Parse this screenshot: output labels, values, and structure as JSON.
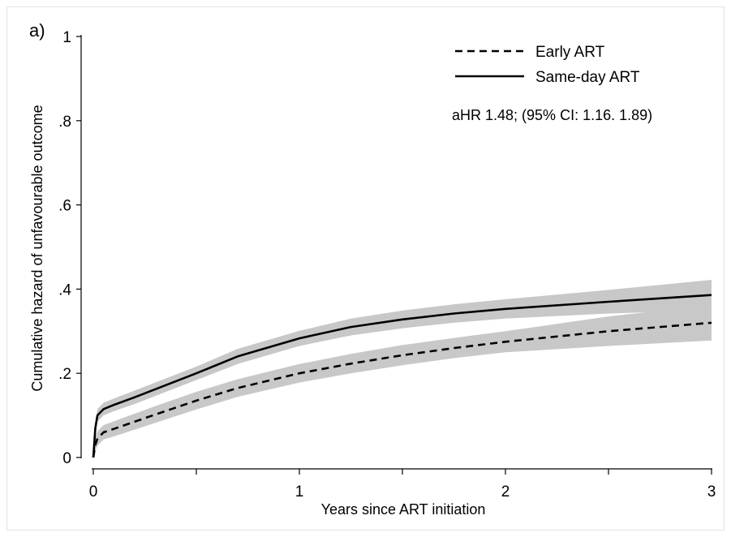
{
  "chart_data": {
    "type": "line",
    "panel_label": "a)",
    "xlabel": "Years since ART initiation",
    "ylabel": "Cumulative hazard of unfavourable outcome",
    "xlim": [
      0,
      3
    ],
    "ylim": [
      0,
      1
    ],
    "x_ticks": [
      0,
      1,
      2,
      3
    ],
    "x_minor_ticks": [
      0.5,
      1.5,
      2.5
    ],
    "x_tick_labels": [
      "0",
      "1",
      "2",
      "3"
    ],
    "y_ticks": [
      0,
      0.2,
      0.4,
      0.6,
      0.8,
      1
    ],
    "y_tick_labels": [
      "0",
      ".2",
      ".4",
      ".6",
      ".8",
      "1"
    ],
    "grid": false,
    "legend_position": "top-right",
    "annotation": "aHR 1.48; (95% CI: 1.16. 1.89)",
    "colors": {
      "line": "#000000",
      "ci_band": "#c8c8c8"
    },
    "series": [
      {
        "name": "Early ART",
        "style": "dashed",
        "x": [
          0,
          0.01,
          0.02,
          0.05,
          0.1,
          0.2,
          0.3,
          0.5,
          0.7,
          1.0,
          1.25,
          1.5,
          1.75,
          2.0,
          2.5,
          3.0
        ],
        "y": [
          0,
          0.03,
          0.045,
          0.06,
          0.068,
          0.085,
          0.102,
          0.135,
          0.165,
          0.2,
          0.223,
          0.243,
          0.26,
          0.275,
          0.3,
          0.32
        ],
        "lower": [
          0,
          0.015,
          0.028,
          0.043,
          0.05,
          0.066,
          0.082,
          0.114,
          0.144,
          0.178,
          0.2,
          0.219,
          0.236,
          0.25,
          0.265,
          0.278
        ],
        "upper": [
          0,
          0.045,
          0.062,
          0.077,
          0.086,
          0.104,
          0.122,
          0.156,
          0.186,
          0.222,
          0.246,
          0.267,
          0.284,
          0.3,
          0.335,
          0.362
        ]
      },
      {
        "name": "Same-day ART",
        "style": "solid",
        "x": [
          0,
          0.01,
          0.02,
          0.05,
          0.1,
          0.2,
          0.3,
          0.5,
          0.7,
          1.0,
          1.25,
          1.5,
          1.75,
          2.0,
          2.5,
          3.0
        ],
        "y": [
          0,
          0.07,
          0.1,
          0.115,
          0.125,
          0.143,
          0.162,
          0.2,
          0.24,
          0.283,
          0.31,
          0.328,
          0.342,
          0.353,
          0.37,
          0.386
        ],
        "lower": [
          0,
          0.055,
          0.085,
          0.1,
          0.11,
          0.127,
          0.146,
          0.184,
          0.222,
          0.265,
          0.29,
          0.307,
          0.32,
          0.33,
          0.342,
          0.35
        ],
        "upper": [
          0,
          0.085,
          0.115,
          0.13,
          0.14,
          0.159,
          0.178,
          0.216,
          0.258,
          0.301,
          0.33,
          0.349,
          0.364,
          0.376,
          0.398,
          0.422
        ]
      }
    ]
  }
}
